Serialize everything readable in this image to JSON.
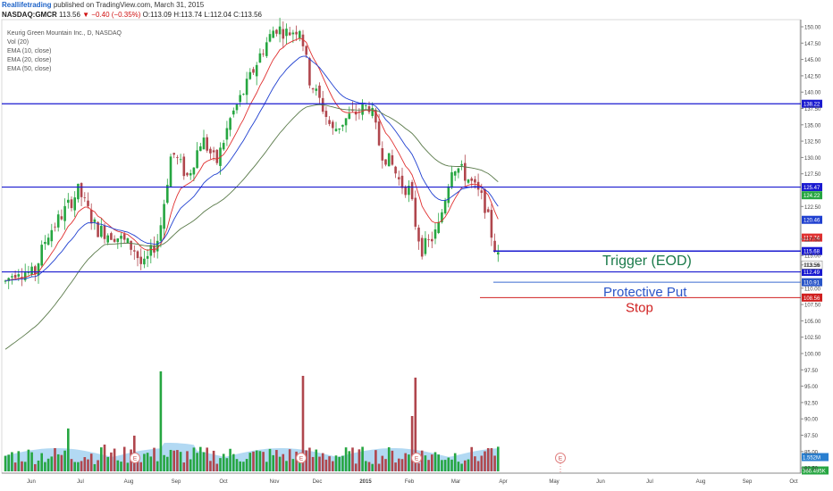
{
  "header": {
    "publisher": "Reallifetrading",
    "published_text": "published on TradingView.com, March 31, 2015"
  },
  "quote": {
    "symbol": "NASDAQ:GMCR",
    "last": "113.56",
    "change": "−0.40 (−0.35%)",
    "open": "O:113.09",
    "high": "H:113.74",
    "low": "L:112.04",
    "close": "C:113.56"
  },
  "legend": {
    "name": "Keurig Green Mountain Inc., D, NASDAQ",
    "items": [
      "Vol (20)",
      "EMA (10, close)",
      "EMA (20, close)",
      "EMA (50, close)"
    ]
  },
  "colors": {
    "up": "#26a641",
    "down": "#b0464d",
    "hline": "#1a1ad0",
    "stop": "#d02020",
    "ema10": "#e03030",
    "ema20": "#2040d0",
    "ema50": "#5a7a4a",
    "volume_ma": "#9fd0f0"
  },
  "chart_data": {
    "type": "candlestick",
    "y_range": [
      100.0,
      150.0
    ],
    "price_ticks": [
      "150.00",
      "147.50",
      "145.00",
      "142.50",
      "140.00",
      "137.50",
      "135.00",
      "132.50",
      "130.00",
      "127.50",
      "122.50",
      "117.50",
      "115.00",
      "113.56",
      "110.00",
      "107.50",
      "105.00",
      "102.50",
      "100.00",
      "97.50",
      "95.00",
      "92.50",
      "90.00",
      "87.50",
      "85.00",
      "82.50"
    ],
    "x_labels": [
      "Jun",
      "Jul",
      "Aug",
      "Sep",
      "Oct",
      "Nov",
      "Dec",
      "2015",
      "Feb",
      "Mar",
      "Apr",
      "May",
      "Jun",
      "Jul",
      "Aug",
      "Sep",
      "Oct"
    ],
    "horizontal_lines": [
      {
        "price": 138.22,
        "label": "138.22"
      },
      {
        "price": 125.47,
        "label": "125.47"
      },
      {
        "price": 112.49,
        "label": "112.49"
      }
    ],
    "trigger": {
      "price": 115.68,
      "label": "115.68",
      "text": "Trigger (EOD)"
    },
    "protective_put": {
      "price": 110.91,
      "label": "110.91",
      "text": "Protective Put"
    },
    "stop": {
      "price": 108.56,
      "label": "108.56",
      "text": "Stop"
    },
    "price_badges": [
      {
        "price": 124.22,
        "label": "124.22",
        "color": "#26a641"
      },
      {
        "price": 120.46,
        "label": "120.46",
        "color": "#2040d0"
      },
      {
        "price": 117.74,
        "label": "117.74",
        "color": "#e03030"
      },
      {
        "price": 113.56,
        "label": "113.56",
        "color": "#ffffff"
      }
    ],
    "volume_badges": [
      {
        "label": "1.552M",
        "color": "#2a7fd0"
      },
      {
        "label": "366.495K",
        "color": "#26a641"
      }
    ],
    "earnings_markers": [
      "E",
      "E",
      "E",
      "E"
    ]
  }
}
